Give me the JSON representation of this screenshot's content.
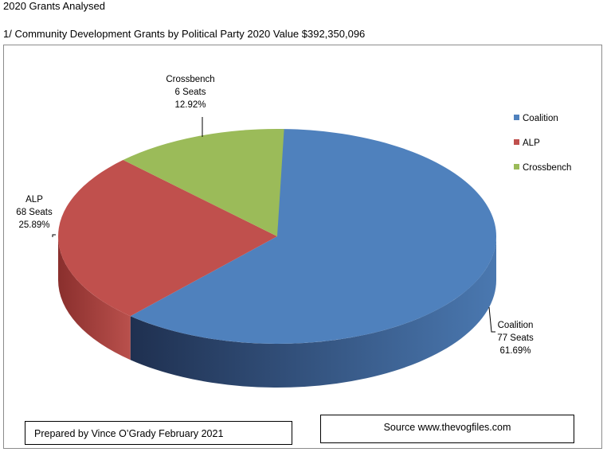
{
  "page": {
    "heading": "2020 Grants Analysed",
    "subheading": "1/ Community Development Grants by Political Party 2020 Value $392,350,096",
    "prepared_by": "Prepared by Vince O’Grady February 2021",
    "source": "Source www.thevogfiles.com"
  },
  "chart_data": {
    "type": "pie",
    "style": "3d",
    "title": "",
    "legend_position": "right",
    "slices": [
      {
        "name": "Coalition",
        "seats": "77 Seats",
        "percent": 61.69,
        "percent_label": "61.69%",
        "color": "#4f81bd",
        "side_dark": "#1f3050",
        "side_light": "#4a78b0"
      },
      {
        "name": "ALP",
        "seats": "68 Seats",
        "percent": 25.89,
        "percent_label": "25.89%",
        "color": "#c0504d",
        "side_dark": "#8a2f2d",
        "side_light": "#b9504c"
      },
      {
        "name": "Crossbench",
        "seats": "6 Seats",
        "percent": 12.92,
        "percent_label": "12.92%",
        "color": "#9bbb59",
        "side_dark": "#6a8a30",
        "side_light": "#9bbb59"
      }
    ]
  }
}
